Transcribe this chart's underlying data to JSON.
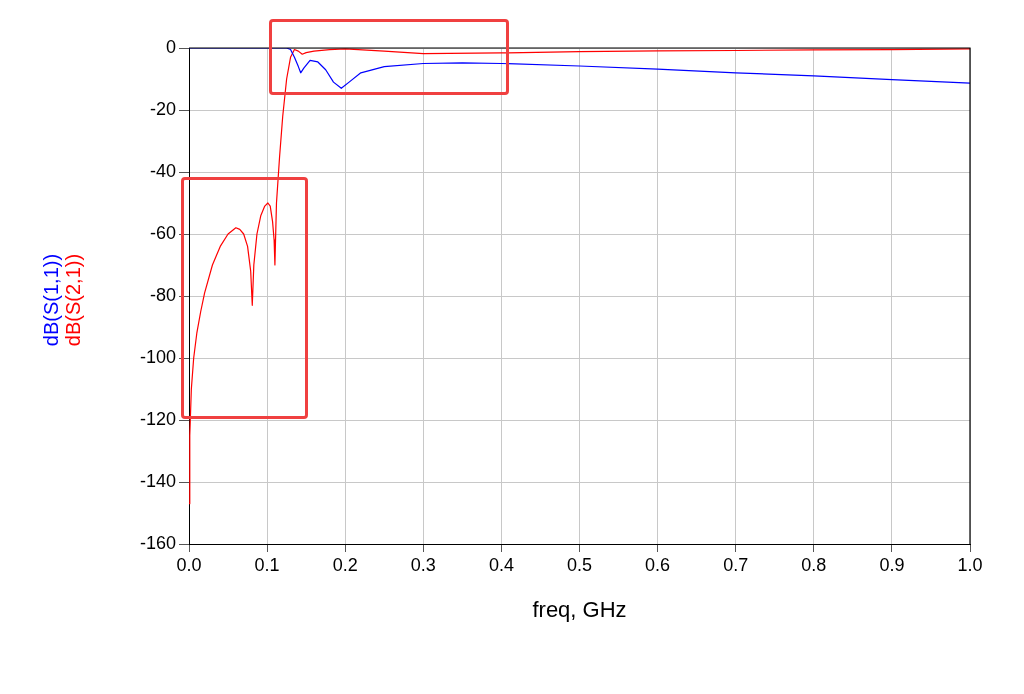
{
  "chart_data": {
    "type": "line",
    "xlabel": "freq, GHz",
    "xlim": [
      0,
      1
    ],
    "xticks": [
      {
        "value": 0,
        "label": "0.0"
      },
      {
        "value": 0.1,
        "label": "0.1"
      },
      {
        "value": 0.2,
        "label": "0.2"
      },
      {
        "value": 0.3,
        "label": "0.3"
      },
      {
        "value": 0.4,
        "label": "0.4"
      },
      {
        "value": 0.5,
        "label": "0.5"
      },
      {
        "value": 0.6,
        "label": "0.6"
      },
      {
        "value": 0.7,
        "label": "0.7"
      },
      {
        "value": 0.8,
        "label": "0.8"
      },
      {
        "value": 0.9,
        "label": "0.9"
      },
      {
        "value": 1,
        "label": "1.0"
      }
    ],
    "ylim": [
      -160,
      0
    ],
    "yticks": [
      -160,
      -140,
      -120,
      -100,
      -80,
      -60,
      -40,
      -20,
      0
    ],
    "grid": true,
    "marker": "none",
    "line_style": "solid",
    "series": [
      {
        "name": "dB(S(1,1))",
        "color": "#0000ff",
        "x": [
          0,
          0.1,
          0.125,
          0.13,
          0.135,
          0.14,
          0.143,
          0.147,
          0.155,
          0.165,
          0.175,
          0.185,
          0.195,
          0.205,
          0.22,
          0.25,
          0.3,
          0.35,
          0.4,
          0.5,
          0.6,
          0.7,
          0.8,
          0.9,
          1.0
        ],
        "values": [
          0,
          0,
          0,
          -0.5,
          -3,
          -6,
          -8,
          -6.5,
          -4,
          -4.5,
          -7,
          -11,
          -13,
          -11,
          -8,
          -6,
          -5,
          -4.8,
          -5,
          -5.8,
          -6.8,
          -8,
          -9,
          -10.2,
          -11.3
        ]
      },
      {
        "name": "dB(S(2,1))",
        "color": "#ff0000",
        "x": [
          0,
          0.001,
          0.003,
          0.006,
          0.01,
          0.015,
          0.02,
          0.03,
          0.04,
          0.05,
          0.06,
          0.065,
          0.07,
          0.075,
          0.079,
          0.081,
          0.083,
          0.087,
          0.092,
          0.097,
          0.101,
          0.104,
          0.107,
          0.109,
          0.11,
          0.112,
          0.116,
          0.12,
          0.125,
          0.13,
          0.135,
          0.14,
          0.145,
          0.15,
          0.16,
          0.18,
          0.2,
          0.25,
          0.3,
          0.4,
          0.5,
          0.6,
          0.7,
          0.8,
          0.9,
          1.0
        ],
        "values": [
          -147,
          -125,
          -110,
          -100,
          -92,
          -85,
          -79,
          -70,
          -64,
          -60,
          -58,
          -58.5,
          -60,
          -64,
          -72,
          -83,
          -70,
          -60,
          -54,
          -51,
          -50,
          -51,
          -56,
          -62,
          -70,
          -50,
          -35,
          -22,
          -10,
          -3,
          -0.5,
          -1,
          -2,
          -1.5,
          -1,
          -0.5,
          -0.3,
          -1,
          -1.8,
          -1.6,
          -1.2,
          -0.9,
          -0.8,
          -0.6,
          -0.5,
          -0.3
        ]
      }
    ]
  }
}
